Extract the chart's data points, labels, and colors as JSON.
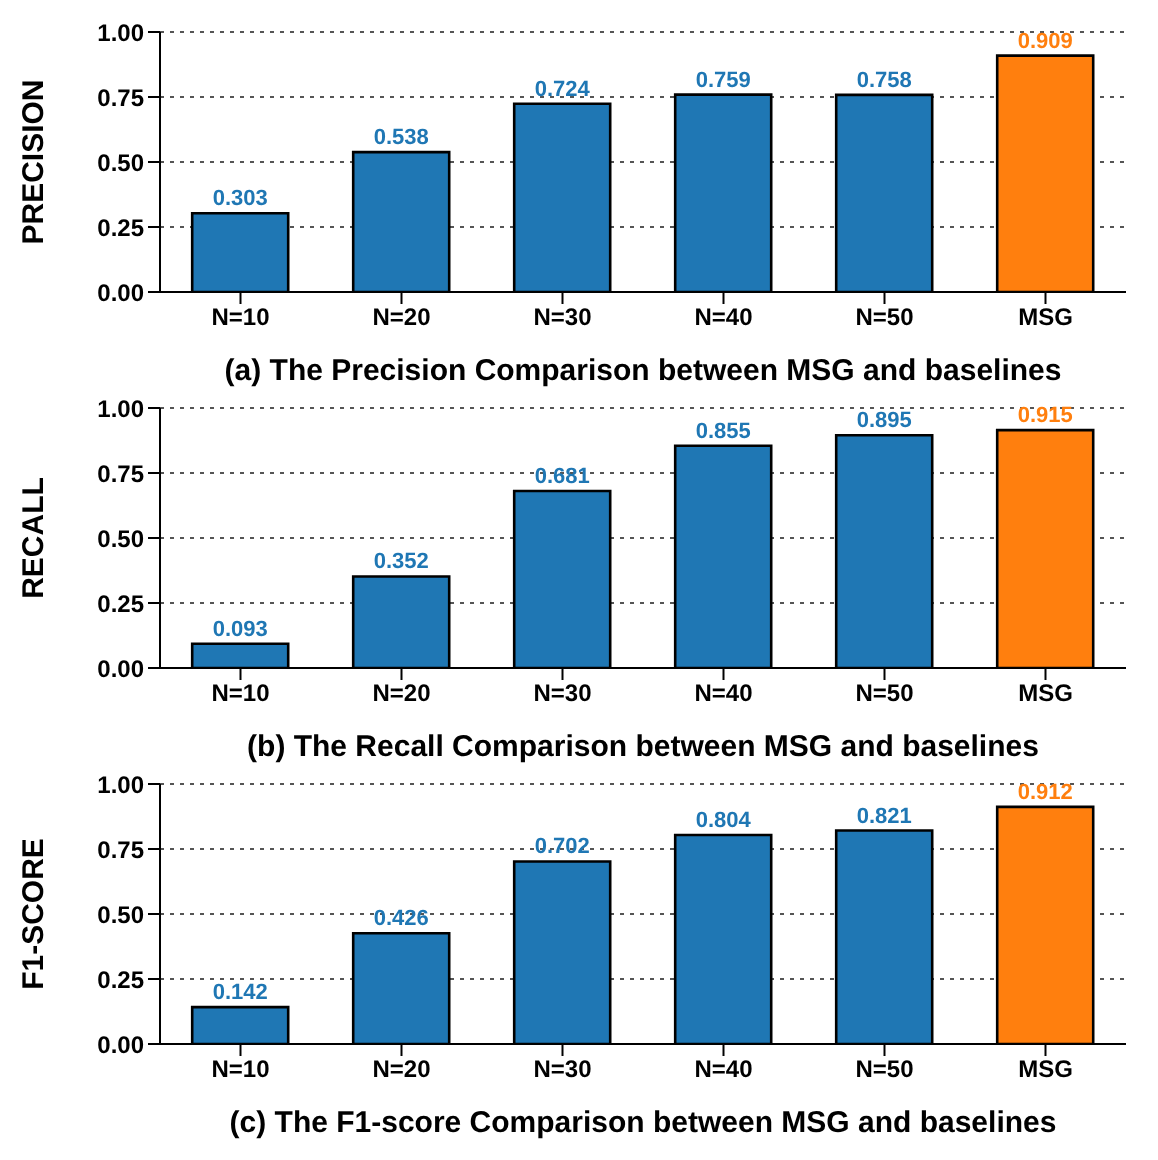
{
  "chart_data": [
    {
      "type": "bar",
      "xlabel": "(a) The Precision Comparison between MSG and baselines",
      "ylabel": "PRECISION",
      "categories": [
        "N=10",
        "N=20",
        "N=30",
        "N=40",
        "N=50",
        "MSG"
      ],
      "values": [
        0.303,
        0.538,
        0.724,
        0.759,
        0.758,
        0.909
      ],
      "colors": [
        "#1f77b4",
        "#1f77b4",
        "#1f77b4",
        "#1f77b4",
        "#1f77b4",
        "#ff7f0e"
      ],
      "ylim": [
        0,
        1
      ],
      "yticks": [
        {
          "value": 0,
          "label": "0.00"
        },
        {
          "value": 0.25,
          "label": "0.25"
        },
        {
          "value": 0.5,
          "label": "0.50"
        },
        {
          "value": 0.75,
          "label": "0.75"
        },
        {
          "value": 1,
          "label": "1.00"
        }
      ],
      "grid": "y",
      "data_labels": true
    },
    {
      "type": "bar",
      "xlabel": "(b) The Recall Comparison between MSG and baselines",
      "ylabel": "RECALL",
      "categories": [
        "N=10",
        "N=20",
        "N=30",
        "N=40",
        "N=50",
        "MSG"
      ],
      "values": [
        0.093,
        0.352,
        0.681,
        0.855,
        0.895,
        0.915
      ],
      "colors": [
        "#1f77b4",
        "#1f77b4",
        "#1f77b4",
        "#1f77b4",
        "#1f77b4",
        "#ff7f0e"
      ],
      "ylim": [
        0,
        1
      ],
      "yticks": [
        {
          "value": 0,
          "label": "0.00"
        },
        {
          "value": 0.25,
          "label": "0.25"
        },
        {
          "value": 0.5,
          "label": "0.50"
        },
        {
          "value": 0.75,
          "label": "0.75"
        },
        {
          "value": 1,
          "label": "1.00"
        }
      ],
      "grid": "y",
      "data_labels": true
    },
    {
      "type": "bar",
      "xlabel": "(c) The F1-score Comparison between MSG and baselines",
      "ylabel": "F1-SCORE",
      "categories": [
        "N=10",
        "N=20",
        "N=30",
        "N=40",
        "N=50",
        "MSG"
      ],
      "values": [
        0.142,
        0.426,
        0.702,
        0.804,
        0.821,
        0.912
      ],
      "colors": [
        "#1f77b4",
        "#1f77b4",
        "#1f77b4",
        "#1f77b4",
        "#1f77b4",
        "#ff7f0e"
      ],
      "ylim": [
        0,
        1
      ],
      "yticks": [
        {
          "value": 0,
          "label": "0.00"
        },
        {
          "value": 0.25,
          "label": "0.25"
        },
        {
          "value": 0.5,
          "label": "0.50"
        },
        {
          "value": 0.75,
          "label": "0.75"
        },
        {
          "value": 1,
          "label": "1.00"
        }
      ],
      "grid": "y",
      "data_labels": true
    }
  ]
}
